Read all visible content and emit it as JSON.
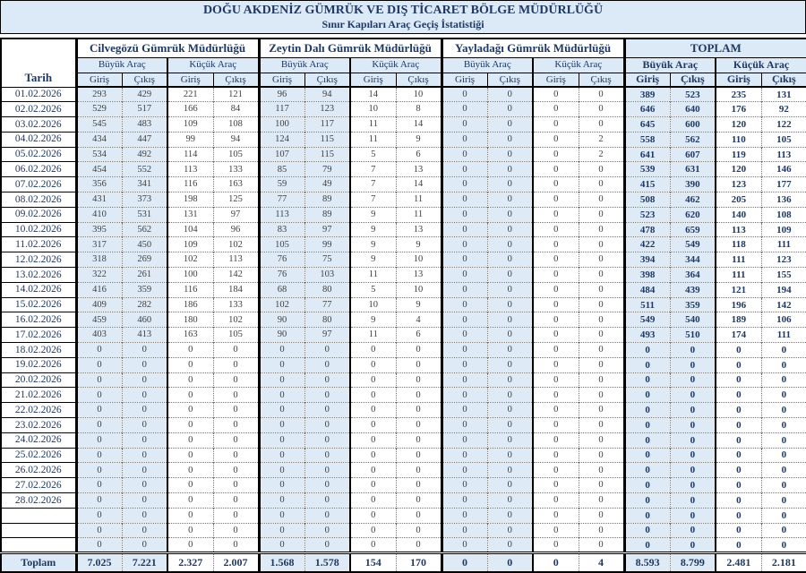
{
  "title": "DOĞU AKDENİZ GÜMRÜK VE DIŞ TİCARET BÖLGE MÜDÜRLÜĞÜ",
  "subtitle": "Sınır Kapıları Araç Geçiş İstatistiği",
  "colors": {
    "header_background": "#DCE9F6",
    "cell_highlight": "#DEEBF7",
    "navy_text": "#1F3864",
    "data_text": "#3F3F3F"
  },
  "table": {
    "date_header": "Tarih",
    "groups": [
      {
        "name": "Cilvegözü Gümrük Müdürlüğü",
        "emphasis": false
      },
      {
        "name": "Zeytin Dalı Gümrük Müdürlüğü",
        "emphasis": false
      },
      {
        "name": "Yayladağı Gümrük Müdürlüğü",
        "emphasis": false
      },
      {
        "name": "TOPLAM",
        "emphasis": true
      }
    ],
    "vehicle_headers": [
      "Büyük Araç",
      "Küçük Araç"
    ],
    "direction_headers": [
      "Giriş",
      "Çıkış"
    ],
    "rows": [
      {
        "date": "01.02.2026",
        "values": [
          293,
          429,
          221,
          121,
          96,
          94,
          14,
          10,
          0,
          0,
          0,
          0,
          389,
          523,
          235,
          131
        ]
      },
      {
        "date": "02.02.2026",
        "values": [
          529,
          517,
          166,
          84,
          117,
          123,
          10,
          8,
          0,
          0,
          0,
          0,
          646,
          640,
          176,
          92
        ]
      },
      {
        "date": "03.02.2026",
        "values": [
          545,
          483,
          109,
          108,
          100,
          117,
          11,
          14,
          0,
          0,
          0,
          0,
          645,
          600,
          120,
          122
        ]
      },
      {
        "date": "04.02.2026",
        "values": [
          434,
          447,
          99,
          94,
          124,
          115,
          11,
          9,
          0,
          0,
          0,
          2,
          558,
          562,
          110,
          105
        ]
      },
      {
        "date": "05.02.2026",
        "values": [
          534,
          492,
          114,
          105,
          107,
          115,
          5,
          6,
          0,
          0,
          0,
          2,
          641,
          607,
          119,
          113
        ]
      },
      {
        "date": "06.02.2026",
        "values": [
          454,
          552,
          113,
          133,
          85,
          79,
          7,
          13,
          0,
          0,
          0,
          0,
          539,
          631,
          120,
          146
        ]
      },
      {
        "date": "07.02.2026",
        "values": [
          356,
          341,
          116,
          163,
          59,
          49,
          7,
          14,
          0,
          0,
          0,
          0,
          415,
          390,
          123,
          177
        ]
      },
      {
        "date": "08.02.2026",
        "values": [
          431,
          373,
          198,
          125,
          77,
          89,
          7,
          11,
          0,
          0,
          0,
          0,
          508,
          462,
          205,
          136
        ]
      },
      {
        "date": "09.02.2026",
        "values": [
          410,
          531,
          131,
          97,
          113,
          89,
          9,
          11,
          0,
          0,
          0,
          0,
          523,
          620,
          140,
          108
        ]
      },
      {
        "date": "10.02.2026",
        "values": [
          395,
          562,
          104,
          96,
          83,
          97,
          9,
          13,
          0,
          0,
          0,
          0,
          478,
          659,
          113,
          109
        ]
      },
      {
        "date": "11.02.2026",
        "values": [
          317,
          450,
          109,
          102,
          105,
          99,
          9,
          9,
          0,
          0,
          0,
          0,
          422,
          549,
          118,
          111
        ]
      },
      {
        "date": "12.02.2026",
        "values": [
          318,
          269,
          102,
          113,
          76,
          75,
          9,
          10,
          0,
          0,
          0,
          0,
          394,
          344,
          111,
          123
        ]
      },
      {
        "date": "13.02.2026",
        "values": [
          322,
          261,
          100,
          142,
          76,
          103,
          11,
          13,
          0,
          0,
          0,
          0,
          398,
          364,
          111,
          155
        ]
      },
      {
        "date": "14.02.2026",
        "values": [
          416,
          359,
          116,
          184,
          68,
          80,
          5,
          10,
          0,
          0,
          0,
          0,
          484,
          439,
          121,
          194
        ]
      },
      {
        "date": "15.02.2026",
        "values": [
          409,
          282,
          186,
          133,
          102,
          77,
          10,
          9,
          0,
          0,
          0,
          0,
          511,
          359,
          196,
          142
        ]
      },
      {
        "date": "16.02.2026",
        "values": [
          459,
          460,
          180,
          102,
          90,
          80,
          9,
          4,
          0,
          0,
          0,
          0,
          549,
          540,
          189,
          106
        ]
      },
      {
        "date": "17.02.2026",
        "values": [
          403,
          413,
          163,
          105,
          90,
          97,
          11,
          6,
          0,
          0,
          0,
          0,
          493,
          510,
          174,
          111
        ]
      },
      {
        "date": "18.02.2026",
        "values": [
          0,
          0,
          0,
          0,
          0,
          0,
          0,
          0,
          0,
          0,
          0,
          0,
          0,
          0,
          0,
          0
        ]
      },
      {
        "date": "19.02.2026",
        "values": [
          0,
          0,
          0,
          0,
          0,
          0,
          0,
          0,
          0,
          0,
          0,
          0,
          0,
          0,
          0,
          0
        ]
      },
      {
        "date": "20.02.2026",
        "values": [
          0,
          0,
          0,
          0,
          0,
          0,
          0,
          0,
          0,
          0,
          0,
          0,
          0,
          0,
          0,
          0
        ]
      },
      {
        "date": "21.02.2026",
        "values": [
          0,
          0,
          0,
          0,
          0,
          0,
          0,
          0,
          0,
          0,
          0,
          0,
          0,
          0,
          0,
          0
        ]
      },
      {
        "date": "22.02.2026",
        "values": [
          0,
          0,
          0,
          0,
          0,
          0,
          0,
          0,
          0,
          0,
          0,
          0,
          0,
          0,
          0,
          0
        ]
      },
      {
        "date": "23.02.2026",
        "values": [
          0,
          0,
          0,
          0,
          0,
          0,
          0,
          0,
          0,
          0,
          0,
          0,
          0,
          0,
          0,
          0
        ]
      },
      {
        "date": "24.02.2026",
        "values": [
          0,
          0,
          0,
          0,
          0,
          0,
          0,
          0,
          0,
          0,
          0,
          0,
          0,
          0,
          0,
          0
        ]
      },
      {
        "date": "25.02.2026",
        "values": [
          0,
          0,
          0,
          0,
          0,
          0,
          0,
          0,
          0,
          0,
          0,
          0,
          0,
          0,
          0,
          0
        ]
      },
      {
        "date": "26.02.2026",
        "values": [
          0,
          0,
          0,
          0,
          0,
          0,
          0,
          0,
          0,
          0,
          0,
          0,
          0,
          0,
          0,
          0
        ]
      },
      {
        "date": "27.02.2026",
        "values": [
          0,
          0,
          0,
          0,
          0,
          0,
          0,
          0,
          0,
          0,
          0,
          0,
          0,
          0,
          0,
          0
        ]
      },
      {
        "date": "28.02.2026",
        "values": [
          0,
          0,
          0,
          0,
          0,
          0,
          0,
          0,
          0,
          0,
          0,
          0,
          0,
          0,
          0,
          0
        ]
      },
      {
        "date": "",
        "values": [
          0,
          0,
          0,
          0,
          0,
          0,
          0,
          0,
          0,
          0,
          0,
          0,
          0,
          0,
          0,
          0
        ]
      },
      {
        "date": "",
        "values": [
          0,
          0,
          0,
          0,
          0,
          0,
          0,
          0,
          0,
          0,
          0,
          0,
          0,
          0,
          0,
          0
        ]
      },
      {
        "date": "",
        "values": [
          0,
          0,
          0,
          0,
          0,
          0,
          0,
          0,
          0,
          0,
          0,
          0,
          0,
          0,
          0,
          0
        ]
      }
    ],
    "total_row": {
      "label": "Toplam",
      "values": [
        "7.025",
        "7.221",
        "2.327",
        "2.007",
        "1.568",
        "1.578",
        "154",
        "170",
        "0",
        "0",
        "0",
        "4",
        "8.593",
        "8.799",
        "2.481",
        "2.181"
      ]
    }
  }
}
